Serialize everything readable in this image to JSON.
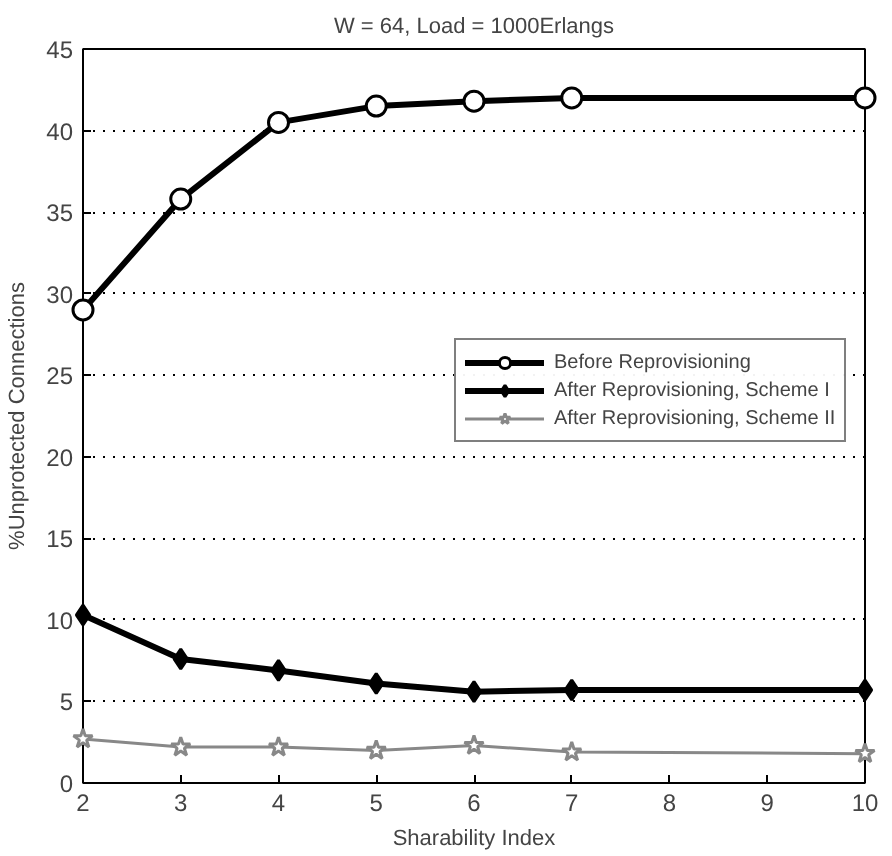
{
  "chart_data": {
    "type": "line",
    "title": "W = 64, Load = 1000Erlangs",
    "xlabel": "Sharability Index",
    "ylabel": "%Unprotected Connections",
    "x": [
      2,
      3,
      4,
      5,
      6,
      7,
      10
    ],
    "series": [
      {
        "name": "Before Reprovisioning",
        "color": "#000000",
        "marker": "circle",
        "values": [
          29,
          35.8,
          40.5,
          41.5,
          41.8,
          42,
          42
        ]
      },
      {
        "name": "After Reprovisioning, Scheme I",
        "color": "#000000",
        "marker": "diamond",
        "values": [
          10.3,
          7.6,
          6.9,
          6.1,
          5.6,
          5.7,
          5.7
        ]
      },
      {
        "name": "After Reprovisioning, Scheme II",
        "color": "#888888",
        "marker": "star",
        "values": [
          2.7,
          2.2,
          2.2,
          2.0,
          2.3,
          1.9,
          1.8
        ]
      }
    ],
    "xlim": [
      2,
      10
    ],
    "ylim": [
      0,
      45
    ],
    "xticks": [
      2,
      3,
      4,
      5,
      6,
      7,
      8,
      9,
      10
    ],
    "yticks": [
      0,
      5,
      10,
      15,
      20,
      25,
      30,
      35,
      40,
      45
    ],
    "grid": "y",
    "legend": "right",
    "line_style": "solid"
  }
}
